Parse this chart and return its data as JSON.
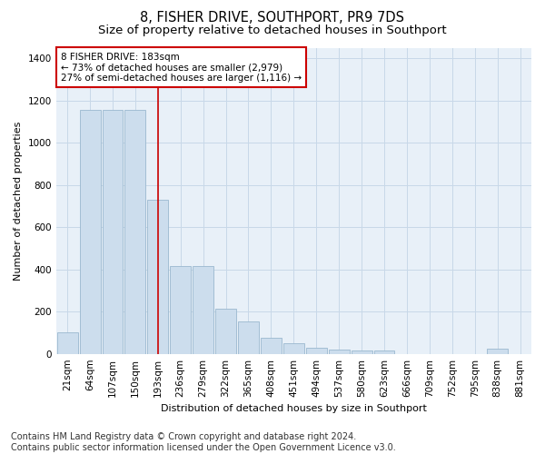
{
  "title": "8, FISHER DRIVE, SOUTHPORT, PR9 7DS",
  "subtitle": "Size of property relative to detached houses in Southport",
  "xlabel": "Distribution of detached houses by size in Southport",
  "ylabel": "Number of detached properties",
  "categories": [
    "21sqm",
    "64sqm",
    "107sqm",
    "150sqm",
    "193sqm",
    "236sqm",
    "279sqm",
    "322sqm",
    "365sqm",
    "408sqm",
    "451sqm",
    "494sqm",
    "537sqm",
    "580sqm",
    "623sqm",
    "666sqm",
    "709sqm",
    "752sqm",
    "795sqm",
    "838sqm",
    "881sqm"
  ],
  "values": [
    100,
    1155,
    1155,
    1155,
    730,
    415,
    415,
    215,
    155,
    75,
    50,
    30,
    20,
    15,
    15,
    0,
    0,
    0,
    0,
    25,
    0
  ],
  "bar_color": "#ccdded",
  "bar_edgecolor": "#9ab8cf",
  "vline_x_index": 4,
  "vline_color": "#cc0000",
  "annotation_text": "8 FISHER DRIVE: 183sqm\n← 73% of detached houses are smaller (2,979)\n27% of semi-detached houses are larger (1,116) →",
  "annotation_box_facecolor": "white",
  "annotation_box_edgecolor": "#cc0000",
  "ylim": [
    0,
    1450
  ],
  "yticks": [
    0,
    200,
    400,
    600,
    800,
    1000,
    1200,
    1400
  ],
  "grid_color": "#c8d8e8",
  "background_color": "#e8f0f8",
  "footer_text": "Contains HM Land Registry data © Crown copyright and database right 2024.\nContains public sector information licensed under the Open Government Licence v3.0.",
  "title_fontsize": 10.5,
  "subtitle_fontsize": 9.5,
  "axis_fontsize": 8,
  "tick_fontsize": 7.5,
  "annotation_fontsize": 7.5,
  "footer_fontsize": 7
}
